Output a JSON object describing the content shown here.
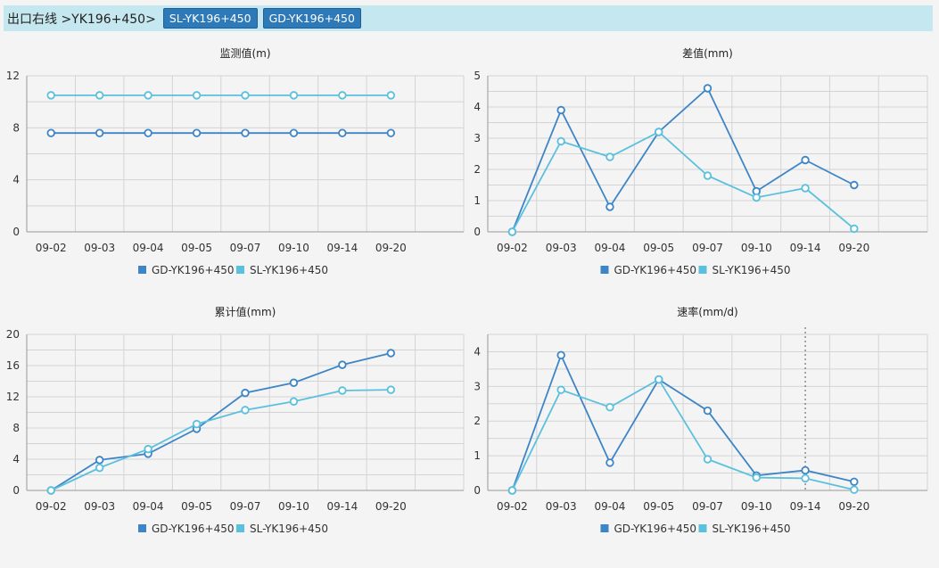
{
  "header": {
    "crumb": "出口右线 >YK196+450>",
    "tabs": [
      "SL-YK196+450",
      "GD-YK196+450"
    ]
  },
  "colors": {
    "gd": "#3d85c6",
    "sl": "#5bc0de"
  },
  "chart_data": [
    {
      "type": "line",
      "title": "监测值(m)",
      "categories": [
        "09-02",
        "09-03",
        "09-04",
        "09-05",
        "09-07",
        "09-10",
        "09-14",
        "09-20"
      ],
      "ylim": [
        0,
        12
      ],
      "yticks": [
        0,
        4,
        8,
        12
      ],
      "series": [
        {
          "name": "GD-YK196+450",
          "values": [
            7.6,
            7.6,
            7.6,
            7.6,
            7.6,
            7.6,
            7.6,
            7.6
          ]
        },
        {
          "name": "SL-YK196+450",
          "values": [
            10.5,
            10.5,
            10.5,
            10.5,
            10.5,
            10.5,
            10.5,
            10.5
          ]
        }
      ]
    },
    {
      "type": "line",
      "title": "差值(mm)",
      "categories": [
        "09-02",
        "09-03",
        "09-04",
        "09-05",
        "09-07",
        "09-10",
        "09-14",
        "09-20"
      ],
      "ylim": [
        0,
        5
      ],
      "yticks": [
        0,
        1,
        2,
        3,
        4,
        5
      ],
      "series": [
        {
          "name": "GD-YK196+450",
          "values": [
            0,
            3.9,
            0.8,
            3.2,
            4.6,
            1.3,
            2.3,
            1.5
          ]
        },
        {
          "name": "SL-YK196+450",
          "values": [
            0,
            2.9,
            2.4,
            3.2,
            1.8,
            1.1,
            1.4,
            0.1
          ]
        }
      ]
    },
    {
      "type": "line",
      "title": "累计值(mm)",
      "categories": [
        "09-02",
        "09-03",
        "09-04",
        "09-05",
        "09-07",
        "09-10",
        "09-14",
        "09-20"
      ],
      "ylim": [
        0,
        20
      ],
      "yticks": [
        0,
        4,
        8,
        12,
        16,
        20
      ],
      "series": [
        {
          "name": "GD-YK196+450",
          "values": [
            0,
            3.9,
            4.7,
            7.9,
            12.5,
            13.8,
            16.1,
            17.6
          ]
        },
        {
          "name": "SL-YK196+450",
          "values": [
            0,
            2.9,
            5.3,
            8.5,
            10.3,
            11.4,
            12.8,
            12.9
          ]
        }
      ]
    },
    {
      "type": "line",
      "title": "速率(mm/d)",
      "categories": [
        "09-02",
        "09-03",
        "09-04",
        "09-05",
        "09-07",
        "09-10",
        "09-14",
        "09-20"
      ],
      "ylim": [
        0,
        4.5
      ],
      "yticks": [
        0,
        1,
        2,
        3,
        4
      ],
      "series": [
        {
          "name": "GD-YK196+450",
          "values": [
            0,
            3.9,
            0.8,
            3.2,
            2.3,
            0.43,
            0.58,
            0.25
          ]
        },
        {
          "name": "SL-YK196+450",
          "values": [
            0,
            2.9,
            2.4,
            3.2,
            0.9,
            0.37,
            0.35,
            0.02
          ]
        }
      ],
      "highlight_category": "09-14"
    }
  ]
}
